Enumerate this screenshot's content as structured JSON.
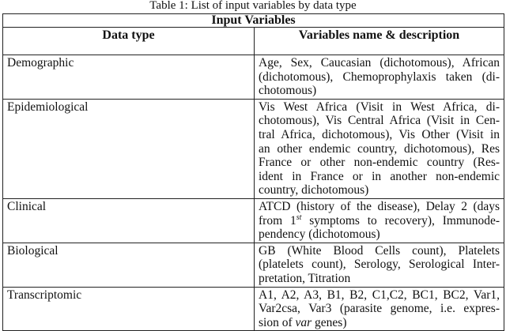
{
  "caption": "Table 1: List of input variables by data type",
  "table": {
    "title": "Input Variables",
    "headers": [
      "Data type",
      "Variables name & description"
    ],
    "rows": [
      {
        "type": "Demographic",
        "lines": [
          "Age, Sex, Caucasian (dichotomous), African",
          "(dichotomous), Chemoprophylaxis taken (di-",
          "chotomous)"
        ]
      },
      {
        "type": "Epidemiological",
        "lines": [
          "Vis West Africa (Visit in West Africa, di-",
          "chotomous), Vis Central Africa (Visit in Cen-",
          "tral Africa, dichotomous), Vis Other (Visit in",
          "an other endemic country, dichotomous), Res",
          "France or other non-endemic country (Res-",
          "ident in France or in another non-endemic",
          "country, dichotomous)"
        ]
      },
      {
        "type": "Clinical",
        "lines": [
          "ATCD (history of the disease), Delay 2 (days",
          "from 1",
          "st",
          " symptoms to recovery), Immunode-",
          "pendency (dichotomous)"
        ]
      },
      {
        "type": "Biological",
        "lines": [
          "GB (White Blood Cells count), Platelets",
          "(platelets count), Serology, Serological Inter-",
          "pretation, Titration"
        ]
      },
      {
        "type": "Transcriptomic",
        "lines": [
          "A1, A2, A3, B1, B2, C1,C2, BC1, BC2, Var1,",
          "Var2csa, Var3 (parasite genome, i.e. expres-",
          "sion of ",
          "var",
          " genes)"
        ]
      }
    ]
  }
}
